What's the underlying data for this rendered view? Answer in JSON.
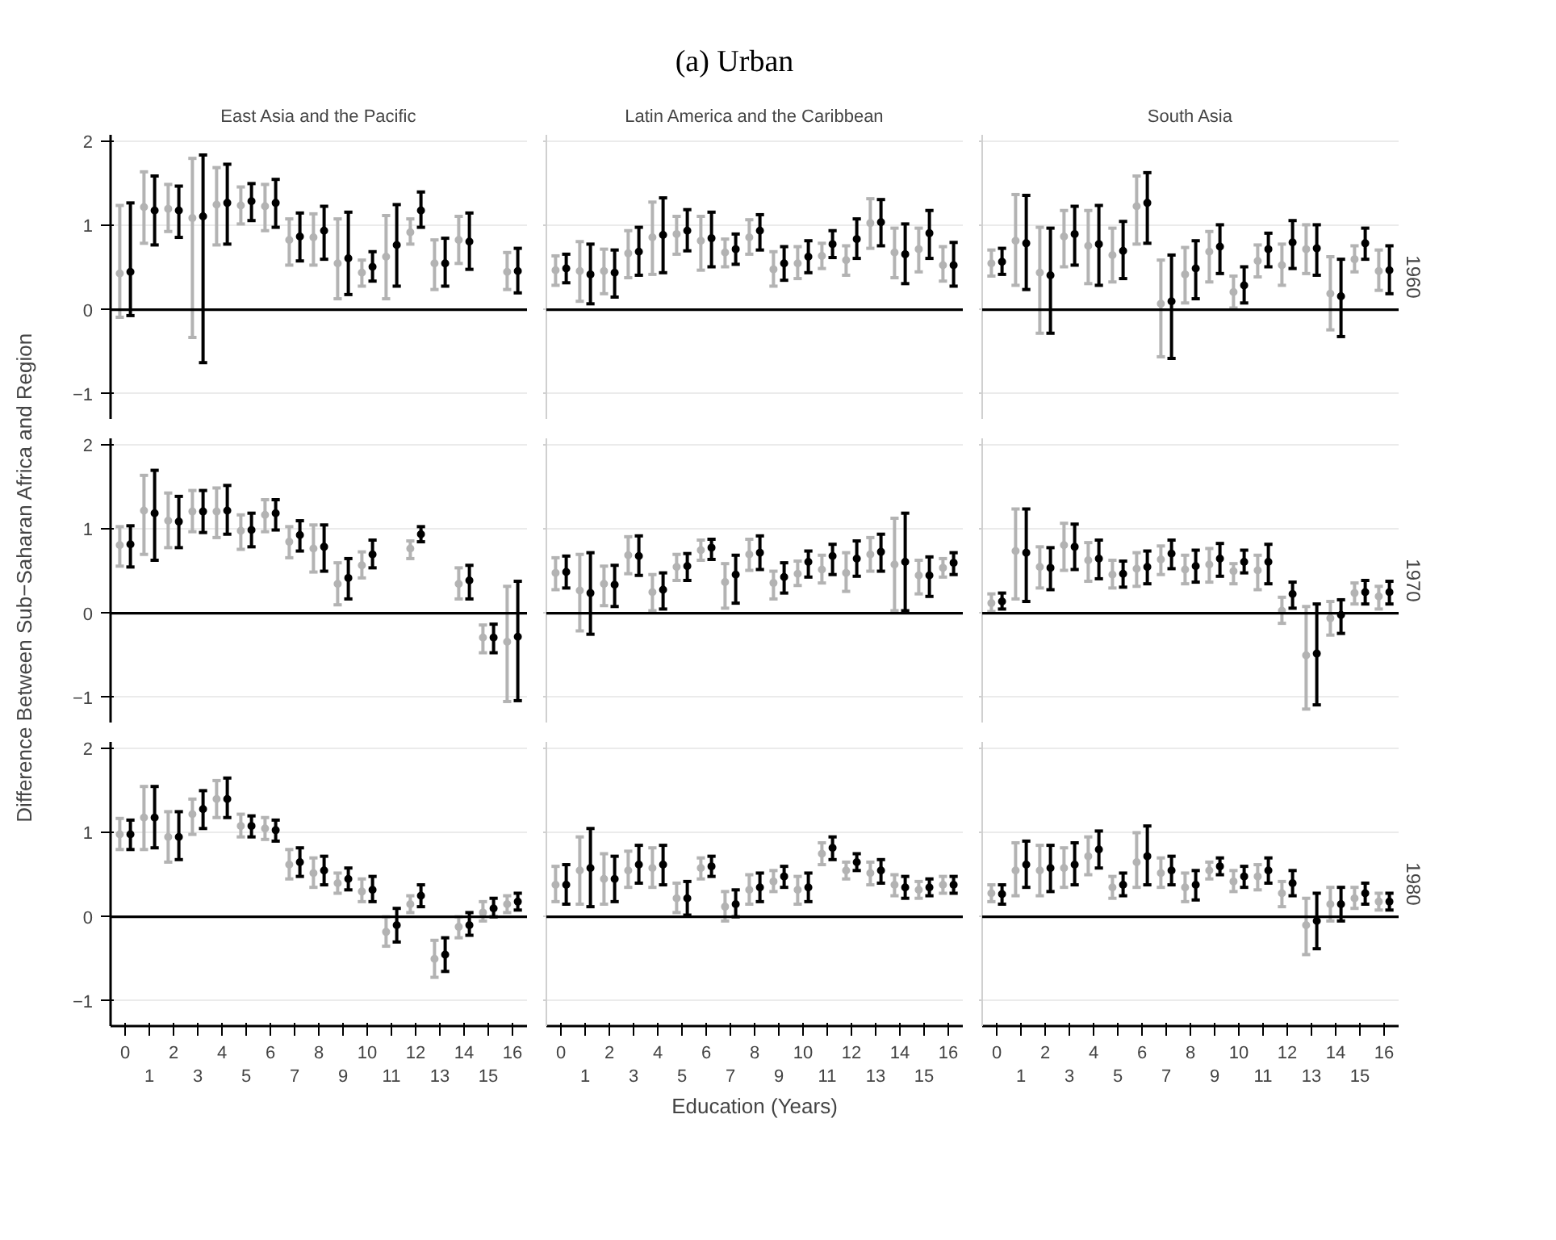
{
  "chart_data": [
    {
      "type": "scatter",
      "title": "East Asia and the Pacific",
      "annotations": [
        "(a) Urban"
      ],
      "categories": [
        "0",
        "1",
        "2",
        "3",
        "4",
        "5",
        "6",
        "7",
        "8",
        "9",
        "10",
        "11",
        "12",
        "13",
        "14",
        "15",
        "16"
      ],
      "ylim": [
        -1.3,
        2.08
      ],
      "yticks": [
        {
          "value": -1,
          "label": "−1"
        },
        0,
        1,
        2
      ],
      "grid": "y",
      "marker": "circle",
      "tick_labels": "y",
      "ref_lines": [
        {
          "axis": "y",
          "value": 0,
          "color": "#000000"
        }
      ],
      "series": [
        {
          "color": "#b3b3b3",
          "values": [
            0.43,
            1.22,
            1.2,
            1.09,
            1.25,
            1.24,
            1.23,
            0.83,
            0.86,
            0.55,
            0.44,
            0.63,
            0.92,
            0.55,
            0.83,
            null,
            0.45
          ],
          "errors": [
            [
              -0.09,
              1.24
            ],
            [
              0.79,
              1.64
            ],
            [
              0.93,
              1.49
            ],
            [
              -0.33,
              1.8
            ],
            [
              0.77,
              1.69
            ],
            [
              1.02,
              1.46
            ],
            [
              0.94,
              1.49
            ],
            [
              0.53,
              1.08
            ],
            [
              0.53,
              1.14
            ],
            [
              0.13,
              1.08
            ],
            [
              0.28,
              0.59
            ],
            [
              0.13,
              1.12
            ],
            [
              0.78,
              1.08
            ],
            [
              0.24,
              0.83
            ],
            [
              0.55,
              1.11
            ],
            null,
            [
              0.24,
              0.68
            ]
          ]
        },
        {
          "color": "#000000",
          "values": [
            0.45,
            1.18,
            1.18,
            1.11,
            1.27,
            1.29,
            1.27,
            0.87,
            0.94,
            0.61,
            0.51,
            0.77,
            1.18,
            0.55,
            0.81,
            null,
            0.46
          ],
          "errors": [
            [
              -0.07,
              1.27
            ],
            [
              0.77,
              1.59
            ],
            [
              0.86,
              1.47
            ],
            [
              -0.63,
              1.84
            ],
            [
              0.78,
              1.73
            ],
            [
              1.06,
              1.5
            ],
            [
              0.98,
              1.55
            ],
            [
              0.58,
              1.15
            ],
            [
              0.6,
              1.23
            ],
            [
              0.18,
              1.16
            ],
            [
              0.34,
              0.69
            ],
            [
              0.28,
              1.25
            ],
            [
              0.98,
              1.4
            ],
            [
              0.28,
              0.85
            ],
            [
              0.48,
              1.15
            ],
            null,
            [
              0.2,
              0.73
            ]
          ]
        }
      ]
    },
    {
      "type": "scatter",
      "title": "Latin America and the Caribbean",
      "categories": [
        "0",
        "1",
        "2",
        "3",
        "4",
        "5",
        "6",
        "7",
        "8",
        "9",
        "10",
        "11",
        "12",
        "13",
        "14",
        "15",
        "16"
      ],
      "ylim": [
        -1.3,
        2.08
      ],
      "yticks": [
        {
          "value": -1,
          "label": null
        },
        {
          "value": 0,
          "label": null
        },
        {
          "value": 1,
          "label": null
        },
        {
          "value": 2,
          "label": null
        }
      ],
      "grid": "y",
      "marker": "circle",
      "tick_labels": false,
      "ref_lines": [
        {
          "axis": "y",
          "value": 0,
          "color": "#000000"
        }
      ],
      "series": [
        {
          "color": "#b3b3b3",
          "values": [
            0.47,
            0.46,
            0.46,
            0.67,
            0.86,
            0.9,
            0.82,
            0.68,
            0.86,
            0.48,
            0.55,
            0.64,
            0.59,
            1.03,
            0.68,
            0.72,
            0.53
          ],
          "errors": [
            [
              0.29,
              0.64
            ],
            [
              0.1,
              0.81
            ],
            [
              0.19,
              0.72
            ],
            [
              0.38,
              0.94
            ],
            [
              0.42,
              1.28
            ],
            [
              0.66,
              1.11
            ],
            [
              0.47,
              1.11
            ],
            [
              0.51,
              0.84
            ],
            [
              0.66,
              1.07
            ],
            [
              0.28,
              0.69
            ],
            [
              0.37,
              0.75
            ],
            [
              0.49,
              0.79
            ],
            [
              0.41,
              0.76
            ],
            [
              0.73,
              1.32
            ],
            [
              0.38,
              0.97
            ],
            [
              0.45,
              0.97
            ],
            [
              0.34,
              0.75
            ]
          ]
        },
        {
          "color": "#000000",
          "values": [
            0.49,
            0.42,
            0.44,
            0.69,
            0.89,
            0.94,
            0.85,
            0.72,
            0.94,
            0.55,
            0.63,
            0.78,
            0.84,
            1.04,
            0.66,
            0.91,
            0.53
          ],
          "errors": [
            [
              0.32,
              0.66
            ],
            [
              0.07,
              0.78
            ],
            [
              0.15,
              0.71
            ],
            [
              0.41,
              0.98
            ],
            [
              0.44,
              1.33
            ],
            [
              0.7,
              1.19
            ],
            [
              0.51,
              1.16
            ],
            [
              0.54,
              0.9
            ],
            [
              0.71,
              1.13
            ],
            [
              0.35,
              0.75
            ],
            [
              0.44,
              0.82
            ],
            [
              0.62,
              0.94
            ],
            [
              0.61,
              1.08
            ],
            [
              0.76,
              1.31
            ],
            [
              0.31,
              1.02
            ],
            [
              0.61,
              1.18
            ],
            [
              0.28,
              0.8
            ]
          ]
        }
      ]
    },
    {
      "type": "scatter",
      "title": "South Asia",
      "subtitle": "1960",
      "categories": [
        "0",
        "1",
        "2",
        "3",
        "4",
        "5",
        "6",
        "7",
        "8",
        "9",
        "10",
        "11",
        "12",
        "13",
        "14",
        "15",
        "16"
      ],
      "ylim": [
        -1.3,
        2.08
      ],
      "yticks": [
        {
          "value": -1,
          "label": null
        },
        {
          "value": 0,
          "label": null
        },
        {
          "value": 1,
          "label": null
        },
        {
          "value": 2,
          "label": null
        }
      ],
      "grid": "y",
      "marker": "circle",
      "tick_labels": false,
      "ref_lines": [
        {
          "axis": "y",
          "value": 0,
          "color": "#000000"
        }
      ],
      "series": [
        {
          "color": "#b3b3b3",
          "values": [
            0.55,
            0.82,
            0.44,
            0.87,
            0.76,
            0.65,
            1.23,
            0.07,
            0.42,
            0.69,
            0.21,
            0.58,
            0.53,
            0.72,
            0.19,
            0.6,
            0.46
          ],
          "errors": [
            [
              0.4,
              0.71
            ],
            [
              0.29,
              1.37
            ],
            [
              -0.28,
              0.98
            ],
            [
              0.51,
              1.18
            ],
            [
              0.31,
              1.18
            ],
            [
              0.33,
              0.97
            ],
            [
              0.78,
              1.59
            ],
            [
              -0.56,
              0.59
            ],
            [
              0.08,
              0.74
            ],
            [
              0.33,
              0.93
            ],
            [
              0.02,
              0.4
            ],
            [
              0.39,
              0.77
            ],
            [
              0.29,
              0.78
            ],
            [
              0.43,
              1.01
            ],
            [
              -0.24,
              0.63
            ],
            [
              0.45,
              0.76
            ],
            [
              0.23,
              0.71
            ]
          ]
        },
        {
          "color": "#000000",
          "values": [
            0.57,
            0.79,
            0.41,
            0.9,
            0.78,
            0.7,
            1.27,
            0.1,
            0.49,
            0.75,
            0.29,
            0.72,
            0.8,
            0.73,
            0.16,
            0.79,
            0.47
          ],
          "errors": [
            [
              0.42,
              0.73
            ],
            [
              0.24,
              1.36
            ],
            [
              -0.28,
              0.97
            ],
            [
              0.53,
              1.23
            ],
            [
              0.29,
              1.24
            ],
            [
              0.37,
              1.05
            ],
            [
              0.79,
              1.63
            ],
            [
              -0.58,
              0.65
            ],
            [
              0.13,
              0.82
            ],
            [
              0.43,
              1.01
            ],
            [
              0.08,
              0.51
            ],
            [
              0.51,
              0.91
            ],
            [
              0.49,
              1.06
            ],
            [
              0.41,
              1.01
            ],
            [
              -0.32,
              0.6
            ],
            [
              0.6,
              0.97
            ],
            [
              0.19,
              0.76
            ]
          ]
        }
      ]
    },
    {
      "type": "scatter",
      "ylabel": "Difference Between Sub−Saharan Africa and Region",
      "categories": [
        "0",
        "1",
        "2",
        "3",
        "4",
        "5",
        "6",
        "7",
        "8",
        "9",
        "10",
        "11",
        "12",
        "13",
        "14",
        "15",
        "16"
      ],
      "ylim": [
        -1.3,
        2.08
      ],
      "yticks": [
        {
          "value": -1,
          "label": "−1"
        },
        0,
        1,
        2
      ],
      "grid": "y",
      "marker": "circle",
      "tick_labels": "y",
      "ref_lines": [
        {
          "axis": "y",
          "value": 0,
          "color": "#000000"
        }
      ],
      "series": [
        {
          "color": "#b3b3b3",
          "values": [
            0.81,
            1.22,
            1.1,
            1.21,
            1.21,
            0.98,
            1.17,
            0.85,
            0.77,
            0.35,
            0.57,
            null,
            0.77,
            null,
            0.35,
            -0.29,
            -0.34
          ],
          "errors": [
            [
              0.56,
              1.03
            ],
            [
              0.7,
              1.64
            ],
            [
              0.78,
              1.43
            ],
            [
              0.97,
              1.46
            ],
            [
              0.9,
              1.49
            ],
            [
              0.76,
              1.17
            ],
            [
              0.97,
              1.35
            ],
            [
              0.66,
              1.03
            ],
            [
              0.49,
              1.05
            ],
            [
              0.1,
              0.6
            ],
            [
              0.42,
              0.73
            ],
            null,
            [
              0.65,
              0.86
            ],
            null,
            [
              0.17,
              0.54
            ],
            [
              -0.47,
              -0.14
            ],
            [
              -1.05,
              0.32
            ]
          ]
        },
        {
          "color": "#000000",
          "values": [
            0.82,
            1.19,
            1.09,
            1.21,
            1.22,
            0.99,
            1.19,
            0.93,
            0.79,
            0.42,
            0.7,
            null,
            0.94,
            null,
            0.39,
            -0.29,
            -0.28
          ],
          "errors": [
            [
              0.55,
              1.04
            ],
            [
              0.63,
              1.7
            ],
            [
              0.78,
              1.39
            ],
            [
              0.96,
              1.46
            ],
            [
              0.94,
              1.52
            ],
            [
              0.79,
              1.19
            ],
            [
              0.99,
              1.35
            ],
            [
              0.74,
              1.1
            ],
            [
              0.5,
              1.05
            ],
            [
              0.17,
              0.65
            ],
            [
              0.54,
              0.87
            ],
            null,
            [
              0.85,
              1.03
            ],
            null,
            [
              0.17,
              0.57
            ],
            [
              -0.47,
              -0.13
            ],
            [
              -1.04,
              0.38
            ]
          ]
        }
      ]
    },
    {
      "type": "scatter",
      "categories": [
        "0",
        "1",
        "2",
        "3",
        "4",
        "5",
        "6",
        "7",
        "8",
        "9",
        "10",
        "11",
        "12",
        "13",
        "14",
        "15",
        "16"
      ],
      "ylim": [
        -1.3,
        2.08
      ],
      "yticks": [
        {
          "value": -1,
          "label": null
        },
        {
          "value": 0,
          "label": null
        },
        {
          "value": 1,
          "label": null
        },
        {
          "value": 2,
          "label": null
        }
      ],
      "grid": "y",
      "marker": "circle",
      "tick_labels": false,
      "ref_lines": [
        {
          "axis": "y",
          "value": 0,
          "color": "#000000"
        }
      ],
      "series": [
        {
          "color": "#b3b3b3",
          "values": [
            0.48,
            0.27,
            0.35,
            0.69,
            0.25,
            0.55,
            0.75,
            0.37,
            0.7,
            0.36,
            0.47,
            0.52,
            0.48,
            0.7,
            0.58,
            0.45,
            0.54
          ],
          "errors": [
            [
              0.28,
              0.66
            ],
            [
              -0.21,
              0.7
            ],
            [
              0.09,
              0.56
            ],
            [
              0.47,
              0.91
            ],
            [
              0.03,
              0.46
            ],
            [
              0.39,
              0.7
            ],
            [
              0.63,
              0.87
            ],
            [
              0.06,
              0.59
            ],
            [
              0.51,
              0.88
            ],
            [
              0.17,
              0.5
            ],
            [
              0.33,
              0.62
            ],
            [
              0.36,
              0.69
            ],
            [
              0.26,
              0.72
            ],
            [
              0.5,
              0.9
            ],
            [
              0.03,
              1.13
            ],
            [
              0.23,
              0.63
            ],
            [
              0.43,
              0.65
            ]
          ]
        },
        {
          "color": "#000000",
          "values": [
            0.49,
            0.24,
            0.34,
            0.68,
            0.28,
            0.56,
            0.78,
            0.46,
            0.72,
            0.43,
            0.61,
            0.68,
            0.65,
            0.73,
            0.61,
            0.45,
            0.6
          ],
          "errors": [
            [
              0.3,
              0.68
            ],
            [
              -0.25,
              0.72
            ],
            [
              0.08,
              0.57
            ],
            [
              0.45,
              0.92
            ],
            [
              0.05,
              0.48
            ],
            [
              0.39,
              0.71
            ],
            [
              0.64,
              0.88
            ],
            [
              0.12,
              0.69
            ],
            [
              0.52,
              0.92
            ],
            [
              0.24,
              0.6
            ],
            [
              0.43,
              0.74
            ],
            [
              0.46,
              0.82
            ],
            [
              0.44,
              0.86
            ],
            [
              0.5,
              0.94
            ],
            [
              0.03,
              1.19
            ],
            [
              0.2,
              0.67
            ],
            [
              0.46,
              0.72
            ]
          ]
        }
      ]
    },
    {
      "type": "scatter",
      "subtitle": "1970",
      "categories": [
        "0",
        "1",
        "2",
        "3",
        "4",
        "5",
        "6",
        "7",
        "8",
        "9",
        "10",
        "11",
        "12",
        "13",
        "14",
        "15",
        "16"
      ],
      "ylim": [
        -1.3,
        2.08
      ],
      "yticks": [
        {
          "value": -1,
          "label": null
        },
        {
          "value": 0,
          "label": null
        },
        {
          "value": 1,
          "label": null
        },
        {
          "value": 2,
          "label": null
        }
      ],
      "grid": "y",
      "marker": "circle",
      "tick_labels": false,
      "ref_lines": [
        {
          "axis": "y",
          "value": 0,
          "color": "#000000"
        }
      ],
      "series": [
        {
          "color": "#b3b3b3",
          "values": [
            0.12,
            0.74,
            0.55,
            0.81,
            0.63,
            0.46,
            0.53,
            0.64,
            0.52,
            0.58,
            0.5,
            0.51,
            0.03,
            -0.5,
            -0.06,
            0.24,
            0.2
          ],
          "errors": [
            [
              0.02,
              0.23
            ],
            [
              0.17,
              1.24
            ],
            [
              0.3,
              0.79
            ],
            [
              0.51,
              1.07
            ],
            [
              0.38,
              0.84
            ],
            [
              0.3,
              0.63
            ],
            [
              0.32,
              0.72
            ],
            [
              0.46,
              0.8
            ],
            [
              0.35,
              0.69
            ],
            [
              0.37,
              0.77
            ],
            [
              0.35,
              0.59
            ],
            [
              0.28,
              0.69
            ],
            [
              -0.12,
              0.19
            ],
            [
              -1.14,
              0.08
            ],
            [
              -0.26,
              0.14
            ],
            [
              0.11,
              0.36
            ],
            [
              0.05,
              0.32
            ]
          ]
        },
        {
          "color": "#000000",
          "values": [
            0.14,
            0.72,
            0.54,
            0.79,
            0.65,
            0.47,
            0.55,
            0.71,
            0.56,
            0.65,
            0.61,
            0.61,
            0.23,
            -0.48,
            -0.02,
            0.25,
            0.25
          ],
          "errors": [
            [
              0.05,
              0.24
            ],
            [
              0.14,
              1.24
            ],
            [
              0.28,
              0.78
            ],
            [
              0.52,
              1.06
            ],
            [
              0.41,
              0.87
            ],
            [
              0.31,
              0.62
            ],
            [
              0.35,
              0.74
            ],
            [
              0.53,
              0.87
            ],
            [
              0.37,
              0.75
            ],
            [
              0.44,
              0.83
            ],
            [
              0.48,
              0.75
            ],
            [
              0.35,
              0.82
            ],
            [
              0.06,
              0.37
            ],
            [
              -1.09,
              0.11
            ],
            [
              -0.24,
              0.16
            ],
            [
              0.11,
              0.39
            ],
            [
              0.11,
              0.38
            ]
          ]
        }
      ]
    },
    {
      "type": "scatter",
      "categories": [
        "0",
        "1",
        "2",
        "3",
        "4",
        "5",
        "6",
        "7",
        "8",
        "9",
        "10",
        "11",
        "12",
        "13",
        "14",
        "15",
        "16"
      ],
      "ylim": [
        -1.3,
        2.08
      ],
      "yticks": [
        {
          "value": -1,
          "label": "−1"
        },
        0,
        1,
        2
      ],
      "grid": "y",
      "marker": "circle",
      "ref_lines": [
        {
          "axis": "y",
          "value": 0,
          "color": "#000000"
        }
      ],
      "series": [
        {
          "color": "#b3b3b3",
          "values": [
            0.98,
            1.18,
            0.95,
            1.22,
            1.4,
            1.08,
            1.05,
            0.62,
            0.52,
            0.4,
            0.3,
            -0.18,
            0.15,
            -0.5,
            -0.12,
            0.05,
            0.15
          ],
          "errors": [
            [
              0.8,
              1.17
            ],
            [
              0.8,
              1.55
            ],
            [
              0.65,
              1.25
            ],
            [
              0.98,
              1.4
            ],
            [
              1.18,
              1.62
            ],
            [
              0.95,
              1.22
            ],
            [
              0.92,
              1.18
            ],
            [
              0.45,
              0.8
            ],
            [
              0.35,
              0.7
            ],
            [
              0.28,
              0.52
            ],
            [
              0.18,
              0.45
            ],
            [
              -0.35,
              0.0
            ],
            [
              0.05,
              0.25
            ],
            [
              -0.72,
              -0.28
            ],
            [
              -0.25,
              0.0
            ],
            [
              -0.05,
              0.18
            ],
            [
              0.05,
              0.25
            ]
          ]
        },
        {
          "color": "#000000",
          "values": [
            0.98,
            1.18,
            0.95,
            1.28,
            1.4,
            1.08,
            1.03,
            0.65,
            0.55,
            0.45,
            0.32,
            -0.1,
            0.25,
            -0.45,
            -0.1,
            0.1,
            0.18
          ],
          "errors": [
            [
              0.8,
              1.15
            ],
            [
              0.82,
              1.55
            ],
            [
              0.68,
              1.25
            ],
            [
              1.05,
              1.5
            ],
            [
              1.18,
              1.65
            ],
            [
              0.95,
              1.2
            ],
            [
              0.9,
              1.15
            ],
            [
              0.48,
              0.82
            ],
            [
              0.38,
              0.72
            ],
            [
              0.32,
              0.58
            ],
            [
              0.18,
              0.48
            ],
            [
              -0.3,
              0.1
            ],
            [
              0.12,
              0.38
            ],
            [
              -0.65,
              -0.25
            ],
            [
              -0.22,
              0.05
            ],
            [
              0.0,
              0.22
            ],
            [
              0.08,
              0.28
            ]
          ]
        }
      ]
    },
    {
      "type": "scatter",
      "xlabel": "Education (Years)",
      "categories": [
        "0",
        "1",
        "2",
        "3",
        "4",
        "5",
        "6",
        "7",
        "8",
        "9",
        "10",
        "11",
        "12",
        "13",
        "14",
        "15",
        "16"
      ],
      "ylim": [
        -1.3,
        2.08
      ],
      "yticks": [
        {
          "value": -1,
          "label": null
        },
        {
          "value": 0,
          "label": null
        },
        {
          "value": 1,
          "label": null
        },
        {
          "value": 2,
          "label": null
        }
      ],
      "grid": "y",
      "marker": "circle",
      "tick_labels": "x",
      "ref_lines": [
        {
          "axis": "y",
          "value": 0,
          "color": "#000000"
        }
      ],
      "series": [
        {
          "color": "#b3b3b3",
          "values": [
            0.38,
            0.55,
            0.45,
            0.55,
            0.58,
            0.22,
            0.58,
            0.12,
            0.32,
            0.42,
            0.32,
            0.75,
            0.55,
            0.52,
            0.38,
            0.32,
            0.38
          ],
          "errors": [
            [
              0.18,
              0.6
            ],
            [
              0.15,
              0.95
            ],
            [
              0.15,
              0.75
            ],
            [
              0.35,
              0.78
            ],
            [
              0.35,
              0.82
            ],
            [
              0.05,
              0.4
            ],
            [
              0.45,
              0.7
            ],
            [
              -0.05,
              0.3
            ],
            [
              0.15,
              0.5
            ],
            [
              0.3,
              0.55
            ],
            [
              0.15,
              0.48
            ],
            [
              0.62,
              0.88
            ],
            [
              0.45,
              0.65
            ],
            [
              0.38,
              0.65
            ],
            [
              0.25,
              0.5
            ],
            [
              0.22,
              0.42
            ],
            [
              0.28,
              0.48
            ]
          ]
        },
        {
          "color": "#000000",
          "values": [
            0.38,
            0.58,
            0.45,
            0.62,
            0.62,
            0.22,
            0.6,
            0.15,
            0.35,
            0.48,
            0.35,
            0.82,
            0.65,
            0.55,
            0.35,
            0.35,
            0.38
          ],
          "errors": [
            [
              0.15,
              0.62
            ],
            [
              0.12,
              1.05
            ],
            [
              0.18,
              0.72
            ],
            [
              0.4,
              0.85
            ],
            [
              0.38,
              0.85
            ],
            [
              0.02,
              0.42
            ],
            [
              0.48,
              0.72
            ],
            [
              0.0,
              0.32
            ],
            [
              0.18,
              0.52
            ],
            [
              0.35,
              0.6
            ],
            [
              0.18,
              0.52
            ],
            [
              0.68,
              0.95
            ],
            [
              0.55,
              0.75
            ],
            [
              0.4,
              0.68
            ],
            [
              0.22,
              0.48
            ],
            [
              0.25,
              0.45
            ],
            [
              0.28,
              0.48
            ]
          ]
        }
      ]
    },
    {
      "type": "scatter",
      "subtitle": "1980",
      "categories": [
        "0",
        "1",
        "2",
        "3",
        "4",
        "5",
        "6",
        "7",
        "8",
        "9",
        "10",
        "11",
        "12",
        "13",
        "14",
        "15",
        "16"
      ],
      "ylim": [
        -1.3,
        2.08
      ],
      "yticks": [
        {
          "value": -1,
          "label": null
        },
        {
          "value": 0,
          "label": null
        },
        {
          "value": 1,
          "label": null
        },
        {
          "value": 2,
          "label": null
        }
      ],
      "grid": "y",
      "marker": "circle",
      "tick_labels": "x",
      "ref_lines": [
        {
          "axis": "y",
          "value": 0,
          "color": "#000000"
        }
      ],
      "series": [
        {
          "color": "#b3b3b3",
          "values": [
            0.28,
            0.55,
            0.55,
            0.58,
            0.72,
            0.35,
            0.65,
            0.52,
            0.35,
            0.55,
            0.42,
            0.48,
            0.28,
            -0.1,
            0.15,
            0.22,
            0.18
          ],
          "errors": [
            [
              0.18,
              0.38
            ],
            [
              0.25,
              0.88
            ],
            [
              0.25,
              0.85
            ],
            [
              0.35,
              0.82
            ],
            [
              0.5,
              0.95
            ],
            [
              0.22,
              0.48
            ],
            [
              0.35,
              1.0
            ],
            [
              0.35,
              0.7
            ],
            [
              0.18,
              0.52
            ],
            [
              0.45,
              0.65
            ],
            [
              0.3,
              0.55
            ],
            [
              0.32,
              0.62
            ],
            [
              0.12,
              0.42
            ],
            [
              -0.45,
              0.22
            ],
            [
              -0.05,
              0.35
            ],
            [
              0.1,
              0.35
            ],
            [
              0.08,
              0.28
            ]
          ]
        },
        {
          "color": "#000000",
          "values": [
            0.27,
            0.62,
            0.58,
            0.62,
            0.8,
            0.38,
            0.72,
            0.55,
            0.38,
            0.6,
            0.48,
            0.55,
            0.4,
            -0.05,
            0.15,
            0.28,
            0.18
          ],
          "errors": [
            [
              0.15,
              0.38
            ],
            [
              0.35,
              0.9
            ],
            [
              0.3,
              0.85
            ],
            [
              0.38,
              0.88
            ],
            [
              0.58,
              1.02
            ],
            [
              0.25,
              0.52
            ],
            [
              0.38,
              1.08
            ],
            [
              0.38,
              0.72
            ],
            [
              0.2,
              0.55
            ],
            [
              0.5,
              0.7
            ],
            [
              0.35,
              0.6
            ],
            [
              0.4,
              0.7
            ],
            [
              0.25,
              0.55
            ],
            [
              -0.38,
              0.28
            ],
            [
              -0.05,
              0.35
            ],
            [
              0.15,
              0.4
            ],
            [
              0.08,
              0.28
            ]
          ]
        }
      ]
    }
  ]
}
